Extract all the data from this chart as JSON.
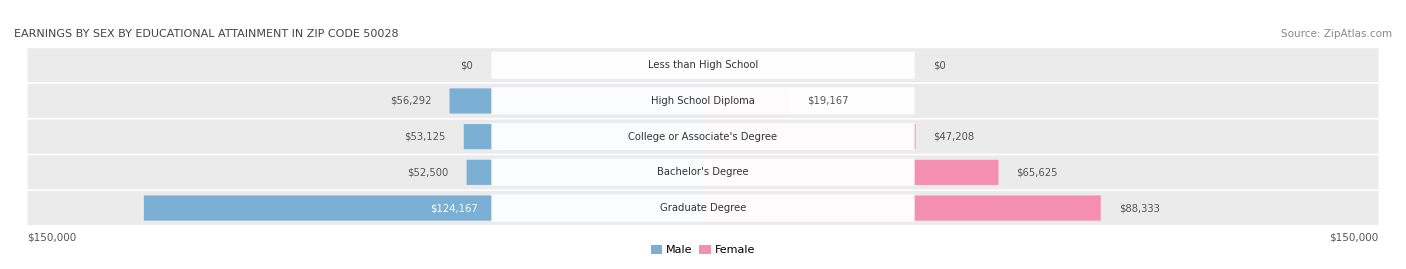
{
  "title": "EARNINGS BY SEX BY EDUCATIONAL ATTAINMENT IN ZIP CODE 50028",
  "source": "Source: ZipAtlas.com",
  "categories": [
    "Less than High School",
    "High School Diploma",
    "College or Associate's Degree",
    "Bachelor's Degree",
    "Graduate Degree"
  ],
  "male_values": [
    0,
    56292,
    53125,
    52500,
    124167
  ],
  "female_values": [
    0,
    19167,
    47208,
    65625,
    88333
  ],
  "male_color": "#7bafd4",
  "female_color": "#f48fb1",
  "male_label": "Male",
  "female_label": "Female",
  "max_val": 150000,
  "bg_color": "#ffffff",
  "row_bg_color": "#ebebeb",
  "label_pill_color": "#ffffff",
  "value_color": "#555555",
  "title_color": "#444444",
  "source_color": "#888888"
}
